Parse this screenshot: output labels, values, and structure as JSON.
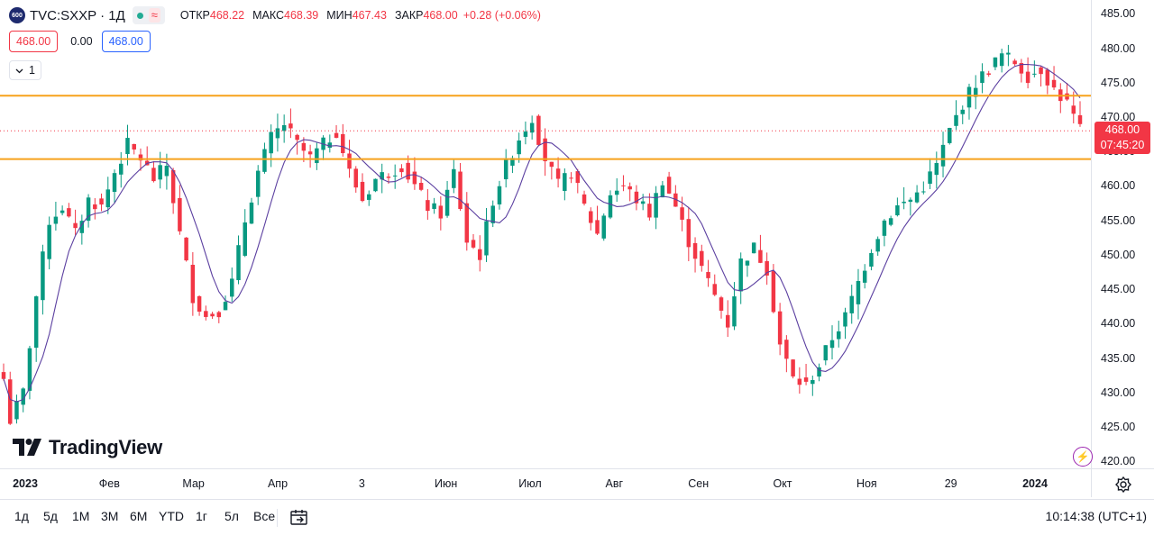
{
  "legend": {
    "badge": "600",
    "symbol": "TVC:SXXP · 1Д",
    "wave": "≈",
    "open_label": "ОТКР",
    "open": "468.22",
    "high_label": "МАКС",
    "high": "468.39",
    "low_label": "МИН",
    "low": "467.43",
    "close_label": "ЗАКР",
    "close": "468.00",
    "change": "+0.28 (+0.06%)"
  },
  "quote": {
    "bid": "468.00",
    "spread": "0.00",
    "ask": "468.00"
  },
  "indicators_toggle": {
    "count": "1"
  },
  "last_price": {
    "price": "468.00",
    "countdown": "07:45:20"
  },
  "logo_text": "TradingView",
  "colors": {
    "up": "#089981",
    "down": "#f23645",
    "ma": "#5b3fa0",
    "level": "#f7a21b",
    "accent": "#2962ff"
  },
  "range_buttons": [
    "1д",
    "5д",
    "1М",
    "3М",
    "6М",
    "YTD",
    "1г",
    "5л",
    "Все"
  ],
  "clock": "10:14:38 (UTC+1)",
  "chart_data": {
    "type": "candlestick",
    "y_ticks": [
      "485.00",
      "480.00",
      "475.00",
      "470.00",
      "465.00",
      "460.00",
      "455.00",
      "450.00",
      "445.00",
      "440.00",
      "435.00",
      "430.00",
      "425.00",
      "420.00"
    ],
    "ylim": [
      419,
      487
    ],
    "x_ticks": [
      {
        "label": "2023",
        "bold": true
      },
      {
        "label": "Фев"
      },
      {
        "label": "Мар"
      },
      {
        "label": "Апр"
      },
      {
        "label": "3"
      },
      {
        "label": "Июн"
      },
      {
        "label": "Июл"
      },
      {
        "label": "Авг"
      },
      {
        "label": "Сен"
      },
      {
        "label": "Окт"
      },
      {
        "label": "Ноя"
      },
      {
        "label": "29"
      },
      {
        "label": "2024",
        "bold": true
      }
    ],
    "horizontal_levels": [
      473.1,
      463.9
    ],
    "last_price_line": 468.0,
    "close_path": [
      [
        0,
        432
      ],
      [
        1,
        426
      ],
      [
        3,
        430
      ],
      [
        5,
        444
      ],
      [
        7,
        455
      ],
      [
        9,
        457
      ],
      [
        11,
        453
      ],
      [
        13,
        458
      ],
      [
        15,
        457
      ],
      [
        17,
        462
      ],
      [
        19,
        466
      ],
      [
        21,
        464
      ],
      [
        23,
        461
      ],
      [
        25,
        463
      ],
      [
        27,
        453
      ],
      [
        29,
        444
      ],
      [
        31,
        441
      ],
      [
        33,
        442
      ],
      [
        35,
        446
      ],
      [
        37,
        455
      ],
      [
        39,
        462
      ],
      [
        41,
        467
      ],
      [
        43,
        469
      ],
      [
        45,
        466
      ],
      [
        47,
        464
      ],
      [
        49,
        466
      ],
      [
        51,
        468
      ],
      [
        53,
        462
      ],
      [
        55,
        458
      ],
      [
        57,
        461
      ],
      [
        59,
        462
      ],
      [
        61,
        463
      ],
      [
        63,
        460
      ],
      [
        65,
        457
      ],
      [
        67,
        456
      ],
      [
        69,
        462
      ],
      [
        71,
        452
      ],
      [
        73,
        450
      ],
      [
        75,
        458
      ],
      [
        77,
        463
      ],
      [
        79,
        467
      ],
      [
        81,
        470
      ],
      [
        83,
        464
      ],
      [
        85,
        460
      ],
      [
        87,
        462
      ],
      [
        89,
        457
      ],
      [
        91,
        453
      ],
      [
        93,
        459
      ],
      [
        95,
        460
      ],
      [
        97,
        458
      ],
      [
        99,
        456
      ],
      [
        101,
        461
      ],
      [
        103,
        457
      ],
      [
        105,
        452
      ],
      [
        107,
        448
      ],
      [
        109,
        444
      ],
      [
        111,
        440
      ],
      [
        113,
        449
      ],
      [
        115,
        451
      ],
      [
        117,
        448
      ],
      [
        119,
        437
      ],
      [
        121,
        432
      ],
      [
        123,
        431
      ],
      [
        125,
        434
      ],
      [
        127,
        438
      ],
      [
        129,
        441
      ],
      [
        131,
        446
      ],
      [
        133,
        451
      ],
      [
        135,
        455
      ],
      [
        137,
        457
      ],
      [
        139,
        458
      ],
      [
        141,
        460
      ],
      [
        143,
        463
      ],
      [
        145,
        468
      ],
      [
        147,
        472
      ],
      [
        149,
        475
      ],
      [
        151,
        477
      ],
      [
        153,
        479
      ],
      [
        155,
        478
      ],
      [
        157,
        476
      ],
      [
        159,
        477
      ],
      [
        161,
        474
      ],
      [
        163,
        472
      ],
      [
        165,
        468
      ]
    ]
  }
}
